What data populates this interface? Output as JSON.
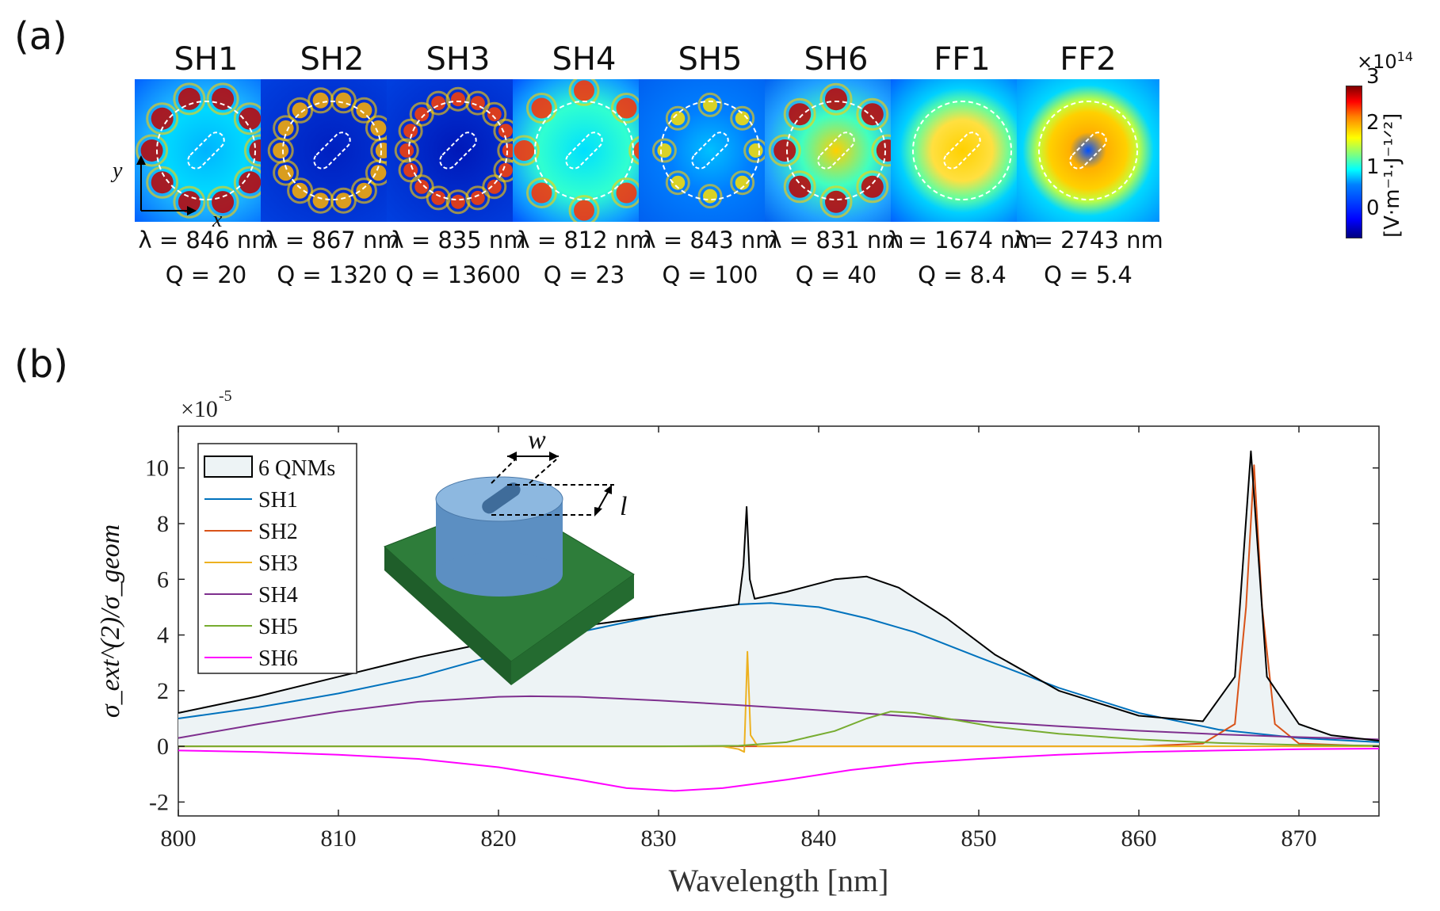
{
  "panel_a": {
    "label": "(a)",
    "modes": [
      {
        "name": "SH1",
        "wavelength": "λ = 846 nm",
        "q": "Q = 20",
        "style": "sh1"
      },
      {
        "name": "SH2",
        "wavelength": "λ = 867 nm",
        "q": "Q = 1320",
        "style": "sh2"
      },
      {
        "name": "SH3",
        "wavelength": "λ = 835 nm",
        "q": "Q = 13600",
        "style": "sh3"
      },
      {
        "name": "SH4",
        "wavelength": "λ = 812 nm",
        "q": "Q = 23",
        "style": "sh4"
      },
      {
        "name": "SH5",
        "wavelength": "λ = 843 nm",
        "q": "Q = 100",
        "style": "sh5"
      },
      {
        "name": "SH6",
        "wavelength": "λ = 831 nm",
        "q": "Q = 40",
        "style": "sh6"
      },
      {
        "name": "FF1",
        "wavelength": "λ = 1674 nm",
        "q": "Q = 8.4",
        "style": "ff1"
      },
      {
        "name": "FF2",
        "wavelength": "λ = 2743 nm",
        "q": "Q = 5.4",
        "style": "ff2"
      }
    ],
    "axes": {
      "x": "x",
      "y": "y"
    },
    "colorbar": {
      "exponent_prefix": "×10",
      "exponent": "14",
      "ticks": [
        "3",
        "2",
        "1",
        "0"
      ],
      "label": "[V·m⁻¹·J⁻¹ᐟ²]"
    }
  },
  "panel_b": {
    "label": "(b)",
    "inset": {
      "w_label": "w",
      "l_label": "l"
    }
  },
  "chart_data": {
    "type": "line",
    "title": "",
    "xlabel": "Wavelength [nm]",
    "ylabel": "σ_ext^(2)/σ_geom",
    "scale_label": "×10",
    "scale_exponent": "-5",
    "xlim": [
      800,
      875
    ],
    "ylim": [
      -2.5,
      11.5
    ],
    "xticks": [
      800,
      810,
      820,
      830,
      840,
      850,
      860,
      870
    ],
    "yticks": [
      -2,
      0,
      2,
      4,
      6,
      8,
      10
    ],
    "legend_position": "top-left",
    "series": [
      {
        "name": "6 QNMs",
        "color": "#000000",
        "fill": "#edf3f5",
        "x": [
          800,
          805,
          810,
          815,
          820,
          825,
          830,
          833,
          835,
          835.3,
          835.5,
          835.7,
          836,
          838,
          841,
          843,
          845,
          848,
          851,
          855,
          860,
          864,
          866,
          867,
          868,
          870,
          872,
          875
        ],
        "y": [
          1.2,
          1.8,
          2.5,
          3.2,
          3.8,
          4.3,
          4.7,
          4.95,
          5.1,
          6.5,
          8.6,
          6.0,
          5.3,
          5.55,
          6.0,
          6.1,
          5.7,
          4.6,
          3.3,
          2.0,
          1.1,
          0.9,
          2.5,
          10.6,
          2.5,
          0.8,
          0.4,
          0.2
        ]
      },
      {
        "name": "SH1",
        "color": "#0072bd",
        "x": [
          800,
          805,
          810,
          815,
          820,
          825,
          830,
          835,
          837,
          840,
          843,
          846,
          850,
          855,
          860,
          865,
          870,
          875
        ],
        "y": [
          1.0,
          1.4,
          1.9,
          2.5,
          3.3,
          4.1,
          4.7,
          5.1,
          5.15,
          5.0,
          4.6,
          4.1,
          3.2,
          2.1,
          1.2,
          0.6,
          0.3,
          0.15
        ]
      },
      {
        "name": "SH2",
        "color": "#d95319",
        "x": [
          800,
          860,
          864,
          866,
          866.7,
          867.2,
          867.7,
          868.5,
          870,
          875
        ],
        "y": [
          0,
          0,
          0.1,
          0.8,
          5.0,
          10.1,
          5.0,
          0.8,
          0.1,
          0
        ]
      },
      {
        "name": "SH3",
        "color": "#edb120",
        "x": [
          800,
          834,
          835,
          835.35,
          835.55,
          835.75,
          836.2,
          840,
          875
        ],
        "y": [
          0,
          0,
          -0.1,
          -0.2,
          3.4,
          0.4,
          0,
          0,
          0
        ]
      },
      {
        "name": "SH4",
        "color": "#7e2f8e",
        "x": [
          800,
          805,
          810,
          815,
          820,
          822,
          825,
          830,
          835,
          840,
          845,
          850,
          855,
          860,
          865,
          870,
          875
        ],
        "y": [
          0.3,
          0.8,
          1.25,
          1.6,
          1.78,
          1.8,
          1.78,
          1.65,
          1.48,
          1.3,
          1.1,
          0.9,
          0.72,
          0.56,
          0.43,
          0.33,
          0.25
        ]
      },
      {
        "name": "SH5",
        "color": "#77ac30",
        "x": [
          800,
          830,
          835,
          838,
          841,
          843,
          844.5,
          846,
          848,
          851,
          855,
          860,
          865,
          870,
          875
        ],
        "y": [
          0,
          0,
          0.02,
          0.15,
          0.55,
          1.0,
          1.25,
          1.2,
          1.0,
          0.7,
          0.45,
          0.25,
          0.12,
          0.05,
          0.02
        ]
      },
      {
        "name": "SH6",
        "color": "#ff00ff",
        "x": [
          800,
          805,
          810,
          815,
          820,
          825,
          828,
          831,
          834,
          838,
          842,
          846,
          850,
          855,
          860,
          865,
          870,
          875
        ],
        "y": [
          -0.15,
          -0.2,
          -0.3,
          -0.45,
          -0.75,
          -1.2,
          -1.5,
          -1.6,
          -1.5,
          -1.2,
          -0.85,
          -0.6,
          -0.45,
          -0.3,
          -0.2,
          -0.15,
          -0.1,
          -0.08
        ]
      }
    ]
  }
}
